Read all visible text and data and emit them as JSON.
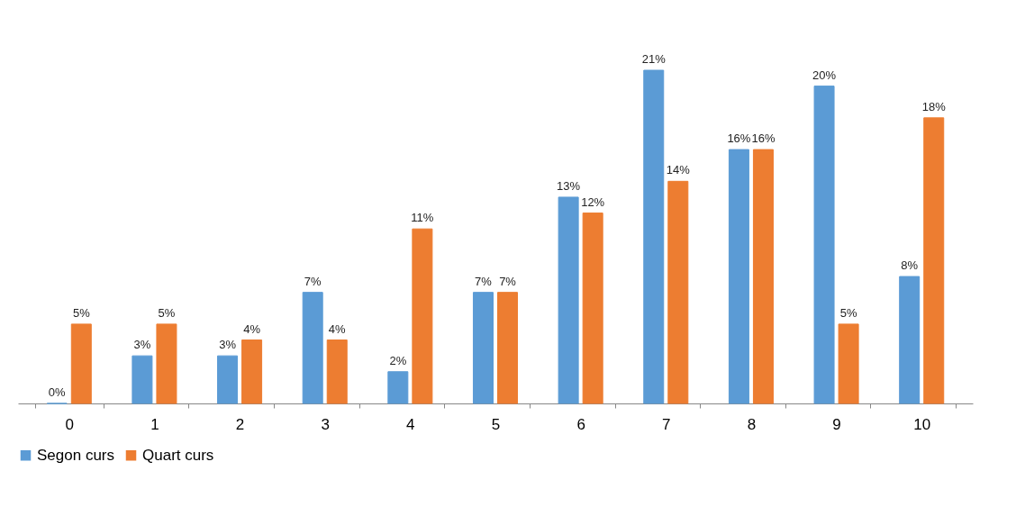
{
  "chart_data": {
    "type": "bar",
    "categories": [
      "0",
      "1",
      "2",
      "3",
      "4",
      "5",
      "6",
      "7",
      "8",
      "9",
      "10"
    ],
    "series": [
      {
        "name": "Segon curs",
        "color": "#5b9bd5",
        "values": [
          0,
          3,
          3,
          7,
          2,
          7,
          13,
          21,
          16,
          20,
          8
        ],
        "value_labels": [
          "0%",
          "3%",
          "3%",
          "7%",
          "2%",
          "7%",
          "13%",
          "21%",
          "16%",
          "20%",
          "8%"
        ]
      },
      {
        "name": "Quart curs",
        "color": "#ed7d31",
        "values": [
          5,
          5,
          4,
          4,
          11,
          7,
          12,
          14,
          16,
          5,
          18
        ],
        "value_labels": [
          "5%",
          "5%",
          "4%",
          "4%",
          "11%",
          "7%",
          "12%",
          "14%",
          "16%",
          "5%",
          "18%"
        ]
      }
    ],
    "legend": "bottom"
  }
}
